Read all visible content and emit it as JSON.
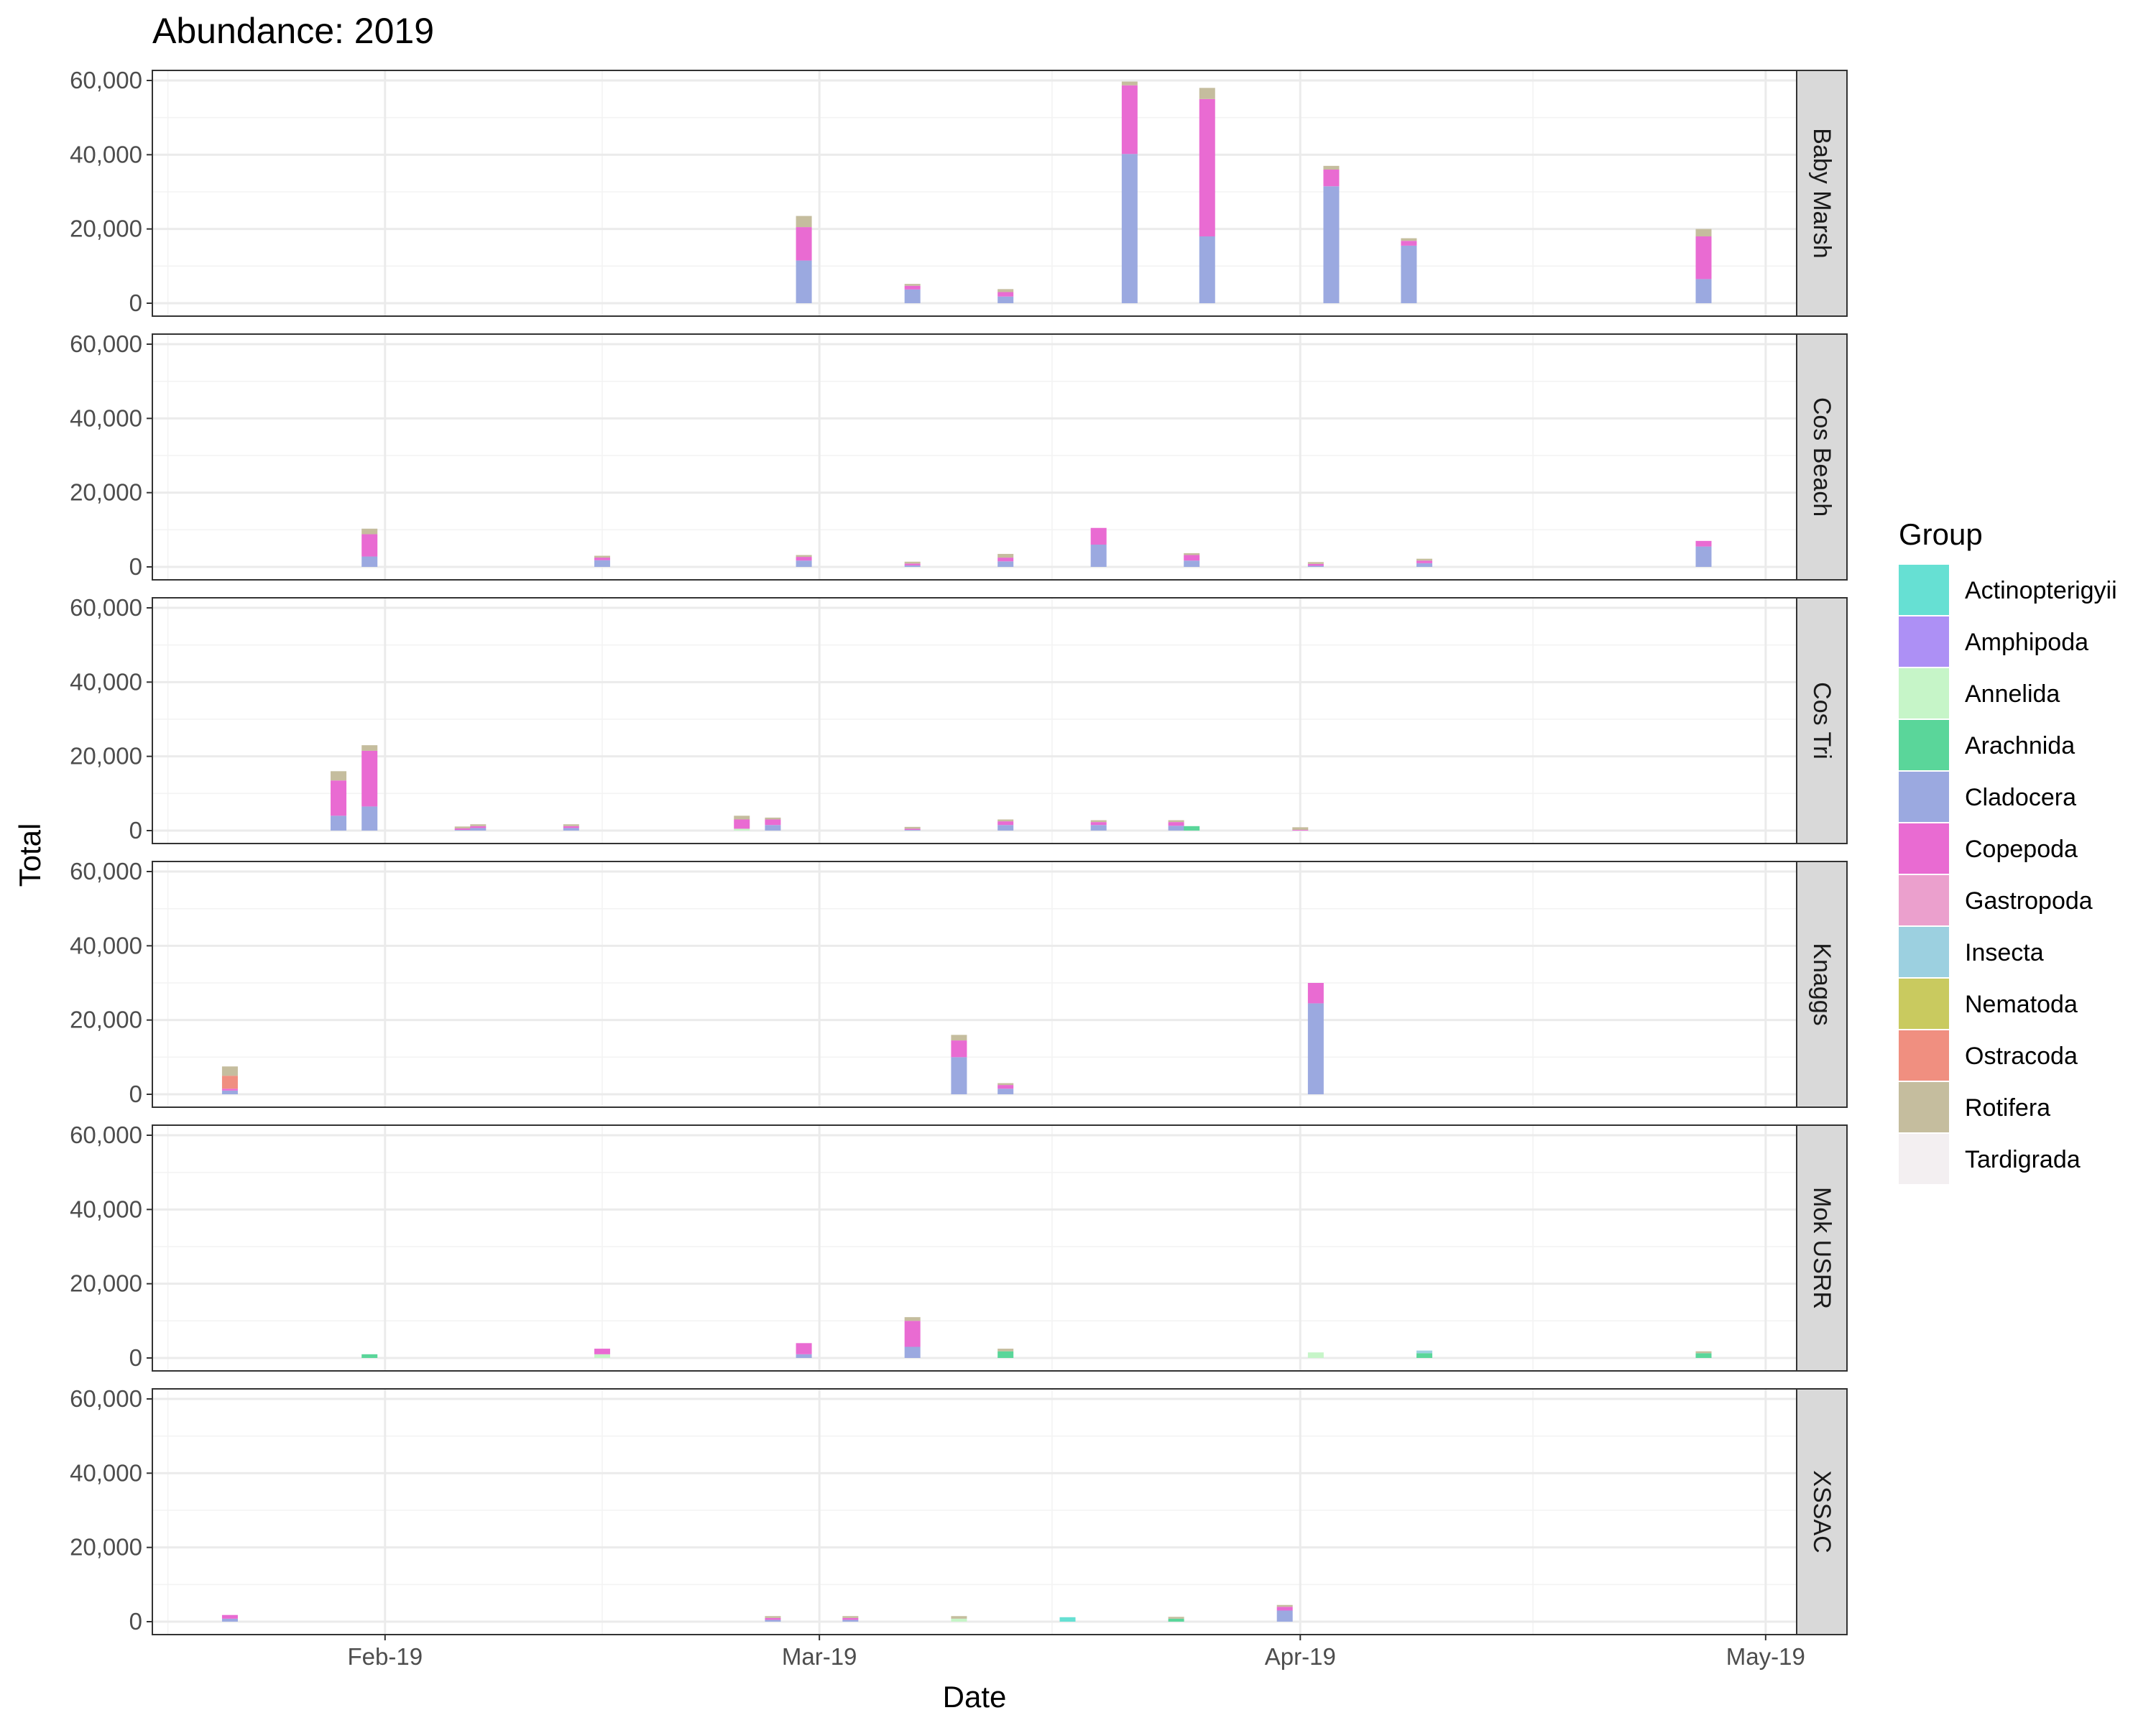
{
  "chart_data": {
    "type": "bar",
    "stacked": true,
    "title": "Abundance: 2019",
    "xlabel": "Date",
    "ylabel": "Total",
    "xlim": [
      "2019-01-17",
      "2019-05-03"
    ],
    "ylim": [
      0,
      60000
    ],
    "yticks": [
      0,
      20000,
      40000,
      60000
    ],
    "ytick_labels": [
      "0",
      "20,000",
      "40,000",
      "60,000"
    ],
    "xticks": [
      {
        "date": "2019-02-01",
        "label": "Feb-19"
      },
      {
        "date": "2019-03-01",
        "label": "Mar-19"
      },
      {
        "date": "2019-04-01",
        "label": "Apr-19"
      },
      {
        "date": "2019-05-01",
        "label": "May-19"
      }
    ],
    "grid": true,
    "legend": {
      "title": "Group",
      "position": "right",
      "entries": [
        {
          "name": "Actinopterigyii",
          "color": "#66E0D3"
        },
        {
          "name": "Amphipoda",
          "color": "#AD90F5"
        },
        {
          "name": "Annelida",
          "color": "#C6F5C8"
        },
        {
          "name": "Arachnida",
          "color": "#5AD69A"
        },
        {
          "name": "Cladocera",
          "color": "#9BA9E0"
        },
        {
          "name": "Copepoda",
          "color": "#E96BD2"
        },
        {
          "name": "Gastropoda",
          "color": "#EBA0CD"
        },
        {
          "name": "Insecta",
          "color": "#9CD0E0"
        },
        {
          "name": "Nematoda",
          "color": "#C9CA5F"
        },
        {
          "name": "Ostracoda",
          "color": "#F08F80"
        },
        {
          "name": "Rotifera",
          "color": "#C5BD9E"
        },
        {
          "name": "Tardigrada",
          "color": "#F3EFF1"
        }
      ]
    },
    "facets": [
      {
        "name": "Baby Marsh",
        "bars": [
          {
            "date": "2019-02-28",
            "stack": {
              "Rotifera": 3000,
              "Copepoda": 9000,
              "Cladocera": 11500
            }
          },
          {
            "date": "2019-03-07",
            "stack": {
              "Rotifera": 500,
              "Copepoda": 1000,
              "Cladocera": 3700
            }
          },
          {
            "date": "2019-03-13",
            "stack": {
              "Rotifera": 800,
              "Copepoda": 1200,
              "Cladocera": 1800
            }
          },
          {
            "date": "2019-03-21",
            "stack": {
              "Rotifera": 1000,
              "Copepoda": 18500,
              "Cladocera": 40200
            }
          },
          {
            "date": "2019-03-26",
            "stack": {
              "Rotifera": 3000,
              "Copepoda": 37000,
              "Cladocera": 18000
            }
          },
          {
            "date": "2019-04-03",
            "stack": {
              "Rotifera": 1000,
              "Copepoda": 4500,
              "Cladocera": 31500
            }
          },
          {
            "date": "2019-04-08",
            "stack": {
              "Rotifera": 700,
              "Copepoda": 1300,
              "Cladocera": 15500
            }
          },
          {
            "date": "2019-04-27",
            "stack": {
              "Rotifera": 2000,
              "Copepoda": 11500,
              "Cladocera": 6500
            }
          }
        ]
      },
      {
        "name": "Cos Beach",
        "bars": [
          {
            "date": "2019-01-31",
            "stack": {
              "Rotifera": 1500,
              "Copepoda": 6000,
              "Cladocera": 2800
            }
          },
          {
            "date": "2019-02-15",
            "stack": {
              "Rotifera": 500,
              "Copepoda": 700,
              "Cladocera": 1800
            }
          },
          {
            "date": "2019-02-28",
            "stack": {
              "Rotifera": 500,
              "Copepoda": 1000,
              "Cladocera": 1700
            }
          },
          {
            "date": "2019-03-07",
            "stack": {
              "Rotifera": 500,
              "Copepoda": 500,
              "Cladocera": 400
            }
          },
          {
            "date": "2019-03-13",
            "stack": {
              "Rotifera": 1000,
              "Copepoda": 1000,
              "Cladocera": 1500
            }
          },
          {
            "date": "2019-03-19",
            "stack": {
              "Copepoda": 4500,
              "Cladocera": 6000
            }
          },
          {
            "date": "2019-03-25",
            "stack": {
              "Rotifera": 500,
              "Copepoda": 1500,
              "Cladocera": 1700
            }
          },
          {
            "date": "2019-04-02",
            "stack": {
              "Rotifera": 500,
              "Copepoda": 500,
              "Cladocera": 300
            }
          },
          {
            "date": "2019-04-09",
            "stack": {
              "Rotifera": 500,
              "Copepoda": 700,
              "Cladocera": 1000
            }
          },
          {
            "date": "2019-04-27",
            "stack": {
              "Copepoda": 1500,
              "Cladocera": 5500
            }
          }
        ]
      },
      {
        "name": "Cos Tri",
        "bars": [
          {
            "date": "2019-01-29",
            "stack": {
              "Rotifera": 2500,
              "Copepoda": 9500,
              "Cladocera": 4000
            }
          },
          {
            "date": "2019-01-31",
            "stack": {
              "Rotifera": 1500,
              "Copepoda": 15000,
              "Cladocera": 6500
            }
          },
          {
            "date": "2019-02-06",
            "stack": {
              "Rotifera": 500,
              "Copepoda": 400,
              "Cladocera": 200
            }
          },
          {
            "date": "2019-02-07",
            "stack": {
              "Rotifera": 500,
              "Copepoda": 500,
              "Cladocera": 700
            }
          },
          {
            "date": "2019-02-13",
            "stack": {
              "Rotifera": 500,
              "Copepoda": 500,
              "Cladocera": 700
            }
          },
          {
            "date": "2019-02-24",
            "stack": {
              "Rotifera": 1000,
              "Copepoda": 2500,
              "Annelida": 500
            }
          },
          {
            "date": "2019-02-26",
            "stack": {
              "Rotifera": 500,
              "Copepoda": 1500,
              "Cladocera": 1500
            }
          },
          {
            "date": "2019-03-07",
            "stack": {
              "Rotifera": 500,
              "Copepoda": 300,
              "Cladocera": 200
            }
          },
          {
            "date": "2019-03-13",
            "stack": {
              "Rotifera": 500,
              "Copepoda": 1000,
              "Cladocera": 1500
            }
          },
          {
            "date": "2019-03-19",
            "stack": {
              "Rotifera": 500,
              "Copepoda": 800,
              "Cladocera": 1500
            }
          },
          {
            "date": "2019-03-24",
            "stack": {
              "Rotifera": 500,
              "Copepoda": 1000,
              "Cladocera": 1300
            }
          },
          {
            "date": "2019-03-25",
            "stack": {
              "Arachnida": 1200
            }
          },
          {
            "date": "2019-04-01",
            "stack": {
              "Rotifera": 700,
              "Copepoda": 200
            }
          }
        ]
      },
      {
        "name": "Knaggs",
        "bars": [
          {
            "date": "2019-01-22",
            "stack": {
              "Rotifera": 2500,
              "Ostracoda": 3500,
              "Copepoda": 500,
              "Cladocera": 1000
            }
          },
          {
            "date": "2019-03-10",
            "stack": {
              "Rotifera": 1500,
              "Copepoda": 4500,
              "Cladocera": 10000
            }
          },
          {
            "date": "2019-03-13",
            "stack": {
              "Rotifera": 500,
              "Copepoda": 1000,
              "Cladocera": 1500
            }
          },
          {
            "date": "2019-04-02",
            "stack": {
              "Copepoda": 5500,
              "Cladocera": 24500
            }
          }
        ]
      },
      {
        "name": "Mok USRR",
        "bars": [
          {
            "date": "2019-01-31",
            "stack": {
              "Arachnida": 1000
            }
          },
          {
            "date": "2019-02-15",
            "stack": {
              "Copepoda": 1500,
              "Annelida": 1000
            }
          },
          {
            "date": "2019-02-28",
            "stack": {
              "Cladocera": 1000,
              "Copepoda": 3000
            }
          },
          {
            "date": "2019-03-07",
            "stack": {
              "Rotifera": 1000,
              "Copepoda": 7000,
              "Cladocera": 3000
            }
          },
          {
            "date": "2019-03-13",
            "stack": {
              "Rotifera": 700,
              "Arachnida": 1800
            }
          },
          {
            "date": "2019-04-02",
            "stack": {
              "Annelida": 1500
            }
          },
          {
            "date": "2019-04-09",
            "stack": {
              "Insecta": 700,
              "Arachnida": 1300
            }
          },
          {
            "date": "2019-04-27",
            "stack": {
              "Rotifera": 500,
              "Arachnida": 1300
            }
          }
        ]
      },
      {
        "name": "XSSAC",
        "bars": [
          {
            "date": "2019-01-22",
            "stack": {
              "Copepoda": 1000,
              "Cladocera": 800
            }
          },
          {
            "date": "2019-02-26",
            "stack": {
              "Rotifera": 500,
              "Copepoda": 500,
              "Cladocera": 500
            }
          },
          {
            "date": "2019-03-03",
            "stack": {
              "Rotifera": 500,
              "Copepoda": 500,
              "Cladocera": 500
            }
          },
          {
            "date": "2019-03-10",
            "stack": {
              "Rotifera": 700,
              "Annelida": 800
            }
          },
          {
            "date": "2019-03-17",
            "stack": {
              "Actinopterigyii": 1200
            }
          },
          {
            "date": "2019-03-24",
            "stack": {
              "Rotifera": 500,
              "Arachnida": 800
            }
          },
          {
            "date": "2019-03-31",
            "stack": {
              "Rotifera": 500,
              "Copepoda": 1000,
              "Cladocera": 3000
            }
          }
        ]
      }
    ]
  }
}
